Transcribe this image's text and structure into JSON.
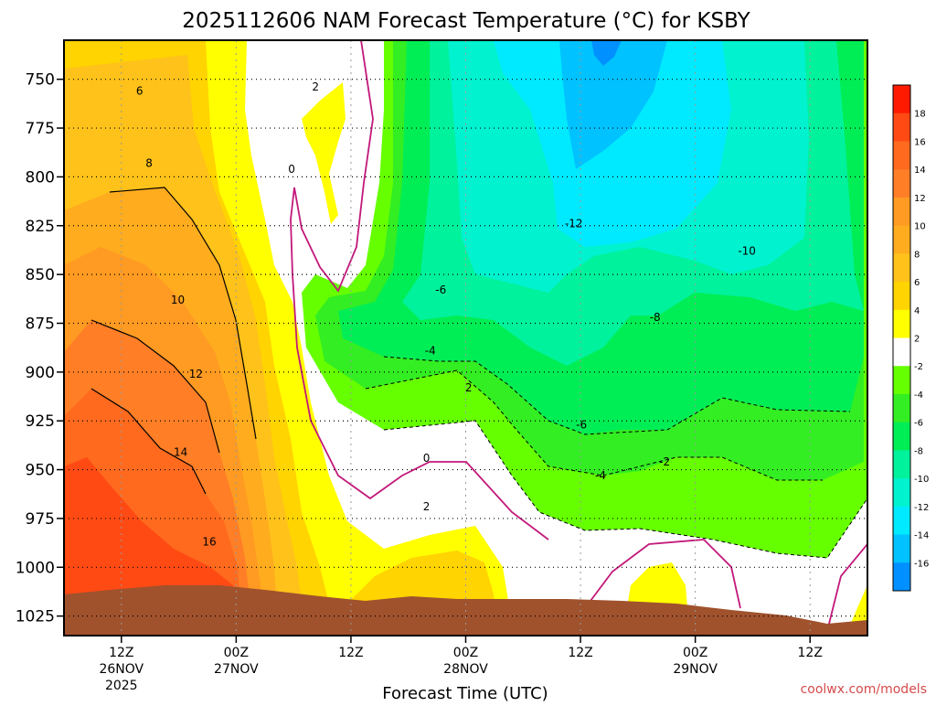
{
  "chart_data": {
    "type": "heatmap",
    "title": "2025112606 NAM Forecast Temperature (°C) for KSBY",
    "xlabel": "Forecast Time (UTC)",
    "ylabel": "",
    "credit": "coolwx.com/models",
    "y_axis": {
      "units": "hPa",
      "ticks": [
        750,
        775,
        800,
        825,
        850,
        875,
        900,
        925,
        950,
        975,
        1000,
        1025
      ],
      "range": [
        730,
        1035
      ]
    },
    "x_axis": {
      "units": "forecast hour",
      "range": [
        0,
        84
      ],
      "ticks": [
        {
          "hour": 6,
          "label": "12Z",
          "date": "26NOV",
          "year": "2025"
        },
        {
          "hour": 18,
          "label": "00Z",
          "date": "27NOV",
          "year": ""
        },
        {
          "hour": 30,
          "label": "12Z",
          "date": "",
          "year": ""
        },
        {
          "hour": 42,
          "label": "00Z",
          "date": "28NOV",
          "year": ""
        },
        {
          "hour": 54,
          "label": "12Z",
          "date": "",
          "year": ""
        },
        {
          "hour": 66,
          "label": "00Z",
          "date": "29NOV",
          "year": ""
        },
        {
          "hour": 78,
          "label": "12Z",
          "date": "",
          "year": ""
        }
      ]
    },
    "colorbar": {
      "labels": [
        "18",
        "16",
        "14",
        "12",
        "10",
        "8",
        "6",
        "4",
        "2",
        "-2",
        "-4",
        "-6",
        "-8",
        "-10",
        "-12",
        "-14",
        "-16"
      ],
      "colors": [
        "#ff1a00",
        "#ff4a14",
        "#ff6a1e",
        "#ff7e26",
        "#ff9a22",
        "#ffac1e",
        "#ffc21a",
        "#ffd400",
        "#ffff00",
        "#ffffff",
        "#66ff00",
        "#33ee22",
        "#00ee55",
        "#00f29c",
        "#00f2cf",
        "#00eaff",
        "#00c2ff",
        "#0090ff"
      ]
    },
    "contour_labels": [
      {
        "value": "2",
        "hour": 26.3,
        "p": 754
      },
      {
        "value": "0",
        "hour": 23.8,
        "p": 796
      },
      {
        "value": "6",
        "hour": 7.9,
        "p": 756
      },
      {
        "value": "8",
        "hour": 8.9,
        "p": 793
      },
      {
        "value": "10",
        "hour": 11.9,
        "p": 863
      },
      {
        "value": "12",
        "hour": 13.8,
        "p": 901
      },
      {
        "value": "14",
        "hour": 12.2,
        "p": 941
      },
      {
        "value": "16",
        "hour": 15.2,
        "p": 987
      },
      {
        "value": "-12",
        "hour": 53.3,
        "p": 824
      },
      {
        "value": "-10",
        "hour": 71.4,
        "p": 838
      },
      {
        "value": "-6",
        "hour": 39.4,
        "p": 858
      },
      {
        "value": "-8",
        "hour": 61.8,
        "p": 872
      },
      {
        "value": "-4",
        "hour": 38.3,
        "p": 889
      },
      {
        "value": "2",
        "hour": 42.3,
        "p": 908
      },
      {
        "value": "-6",
        "hour": 54.1,
        "p": 927
      },
      {
        "value": "0",
        "hour": 37.9,
        "p": 944
      },
      {
        "value": "-2",
        "hour": 62.8,
        "p": 946
      },
      {
        "value": "-4",
        "hour": 56.1,
        "p": 953
      },
      {
        "value": "2",
        "hour": 37.9,
        "p": 969
      }
    ],
    "temperature_regions_note": "Warm (6 to 16C) at low levels early; near 0C boundary moving through ~h22-30; cold (-4 to -16C) aloft after hour 30"
  }
}
